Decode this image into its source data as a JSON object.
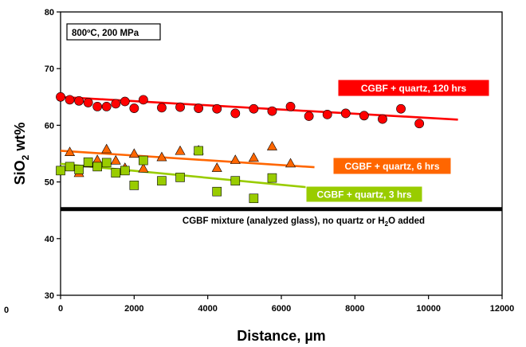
{
  "chart_data": {
    "type": "scatter",
    "xlabel": "Distance, µm",
    "ylabel": "SiO₂ wt%",
    "ylabel_main": "SiO",
    "ylabel_sub": "2",
    "ylabel_rest": " wt%",
    "xlim": [
      0,
      12000
    ],
    "ylim": [
      30,
      80
    ],
    "x_ticks": [
      0,
      2000,
      4000,
      6000,
      8000,
      10000,
      12000
    ],
    "y_ticks": [
      30,
      40,
      50,
      60,
      70,
      80
    ],
    "extra_left_tick_label": "0",
    "grid": false,
    "annotation": "800ºC, 200 MPa",
    "reference_line": {
      "y": 45.2,
      "label_pre": "CGBF mixture (analyzed glass), no quartz or H",
      "label_sub": "2",
      "label_post": "O added",
      "color": "#000000"
    },
    "series": [
      {
        "name": "CGBF + quartz, 120 hrs",
        "marker": "circle",
        "color": "#ff0000",
        "x": [
          0,
          250,
          500,
          750,
          1000,
          1250,
          1500,
          1750,
          2000,
          2250,
          2750,
          3250,
          3750,
          4250,
          4750,
          5250,
          5750,
          6250,
          6750,
          7250,
          7750,
          8250,
          8750,
          9250,
          9750
        ],
        "y": [
          65.0,
          64.5,
          64.3,
          64.0,
          63.3,
          63.3,
          63.8,
          64.2,
          63.0,
          64.5,
          63.1,
          63.2,
          63.0,
          62.9,
          62.1,
          62.9,
          62.5,
          63.3,
          61.6,
          61.9,
          62.1,
          61.7,
          61.1,
          62.9,
          60.3
        ],
        "trend": [
          [
            0,
            65.0
          ],
          [
            10800,
            61.0
          ]
        ]
      },
      {
        "name": "CGBF + quartz, 6 hrs",
        "marker": "triangle",
        "color": "#ff6600",
        "x": [
          250,
          500,
          750,
          1000,
          1250,
          1500,
          1750,
          2000,
          2250,
          2750,
          3250,
          3750,
          4250,
          4750,
          5250,
          5750,
          6250
        ],
        "y": [
          55.3,
          51.6,
          53.3,
          53.9,
          55.8,
          53.8,
          52.5,
          55.0,
          52.4,
          54.4,
          55.5,
          55.6,
          52.5,
          53.9,
          54.3,
          56.3,
          53.3
        ],
        "trend": [
          [
            0,
            55.5
          ],
          [
            6900,
            52.6
          ]
        ]
      },
      {
        "name": "CGBF + quartz, 3 hrs",
        "marker": "square",
        "color": "#99cc00",
        "x": [
          0,
          250,
          500,
          750,
          1000,
          1250,
          1500,
          1750,
          2000,
          2250,
          2750,
          3250,
          3750,
          4250,
          4750,
          5250,
          5750
        ],
        "y": [
          52.0,
          52.7,
          52.2,
          53.5,
          52.7,
          53.4,
          51.6,
          52.0,
          49.4,
          53.8,
          50.2,
          50.8,
          55.5,
          48.3,
          50.2,
          47.1,
          50.7
        ],
        "trend": [
          [
            0,
            53.2
          ],
          [
            6800,
            49.0
          ]
        ]
      }
    ]
  }
}
